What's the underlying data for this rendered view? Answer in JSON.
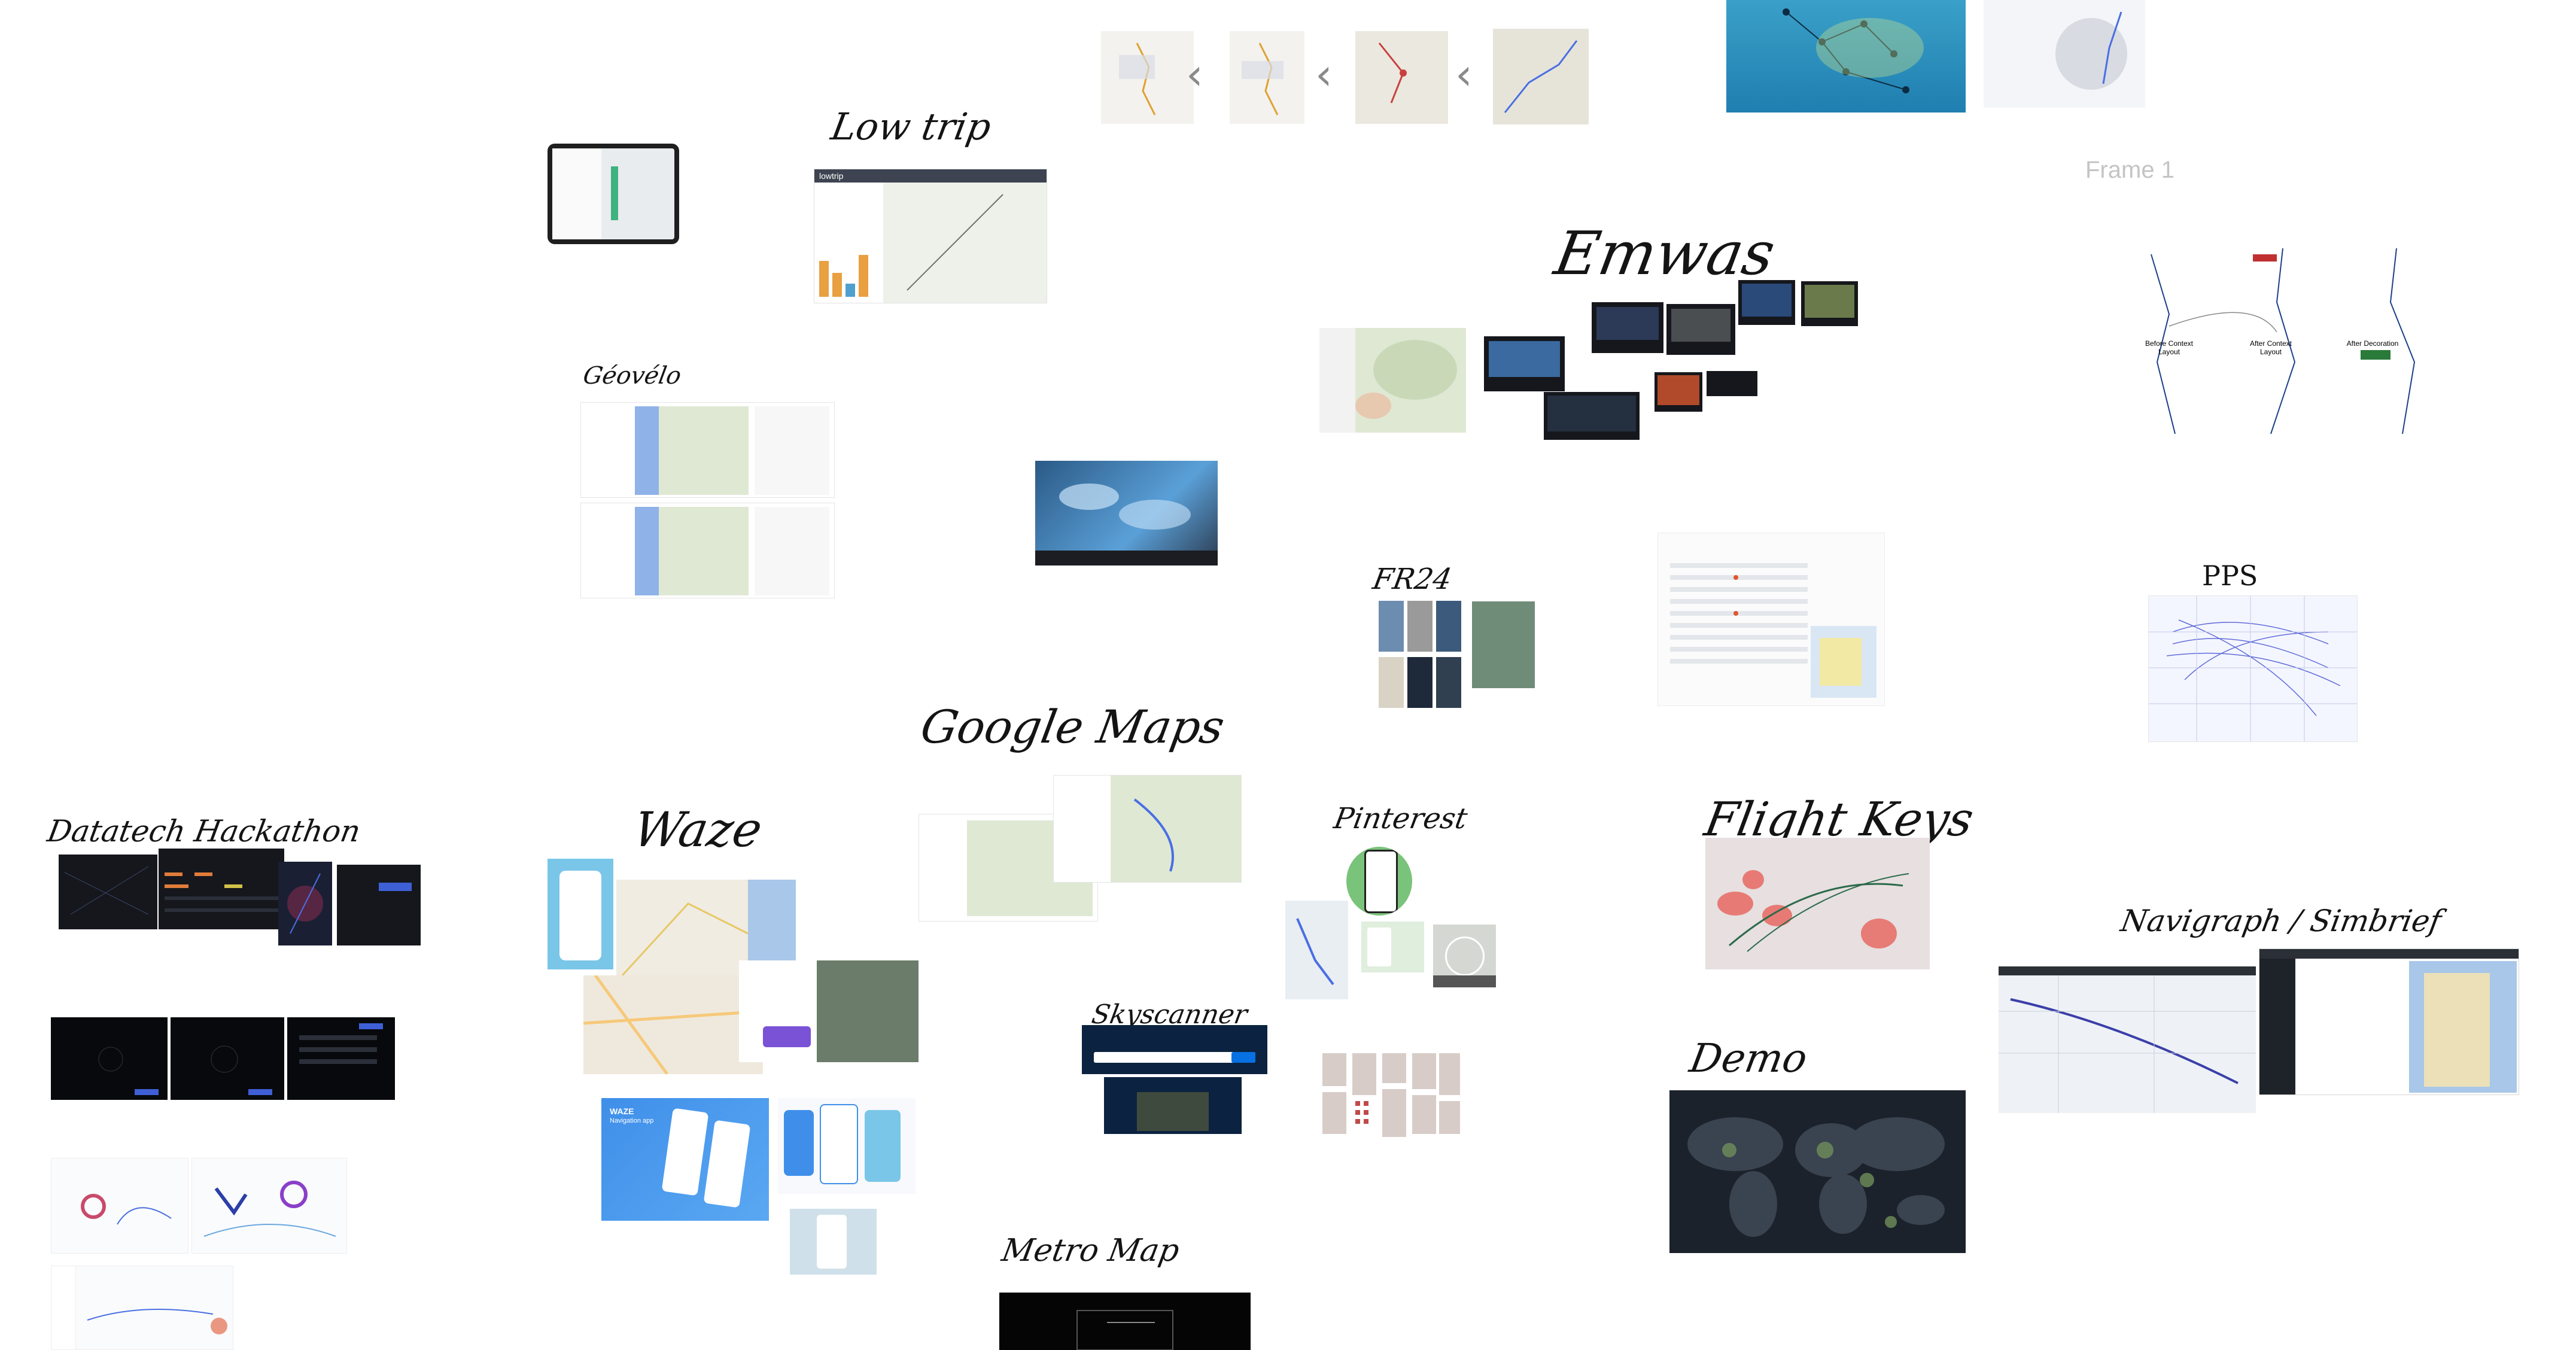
{
  "canvas": {
    "labels": {
      "low_trip": "Low trip",
      "geovelo": "Géovélo",
      "google_maps": "Google Maps",
      "waze": "Waze",
      "datatech_hackathon": "Datatech Hackathon",
      "emwas": "Emwas",
      "fr24": "FR24",
      "pinterest": "Pinterest",
      "skyscanner": "Skyscanner",
      "metro_map": "Metro Map",
      "flight_keys": "Flight Keys",
      "demo": "Demo",
      "pps": "PPS",
      "navigraph": "Navigraph / Simbrief"
    },
    "frame_label": "Frame 1",
    "icons": {
      "chevron": "chevron-left-icon"
    },
    "thumbnails": {
      "lowtrip_brand": "lowtrip",
      "waze_brand": "WAZE",
      "waze_tagline": "Navigation app",
      "pps_before": "Before Context Layout",
      "pps_after_layout": "After Context Layout",
      "pps_after_decoration": "After Decoration"
    },
    "colors": {
      "accent_blue": "#4a6fe3",
      "map_green": "#dfe8d3",
      "water_blue": "#a9c7e8",
      "dark_ui": "#15171c"
    }
  }
}
